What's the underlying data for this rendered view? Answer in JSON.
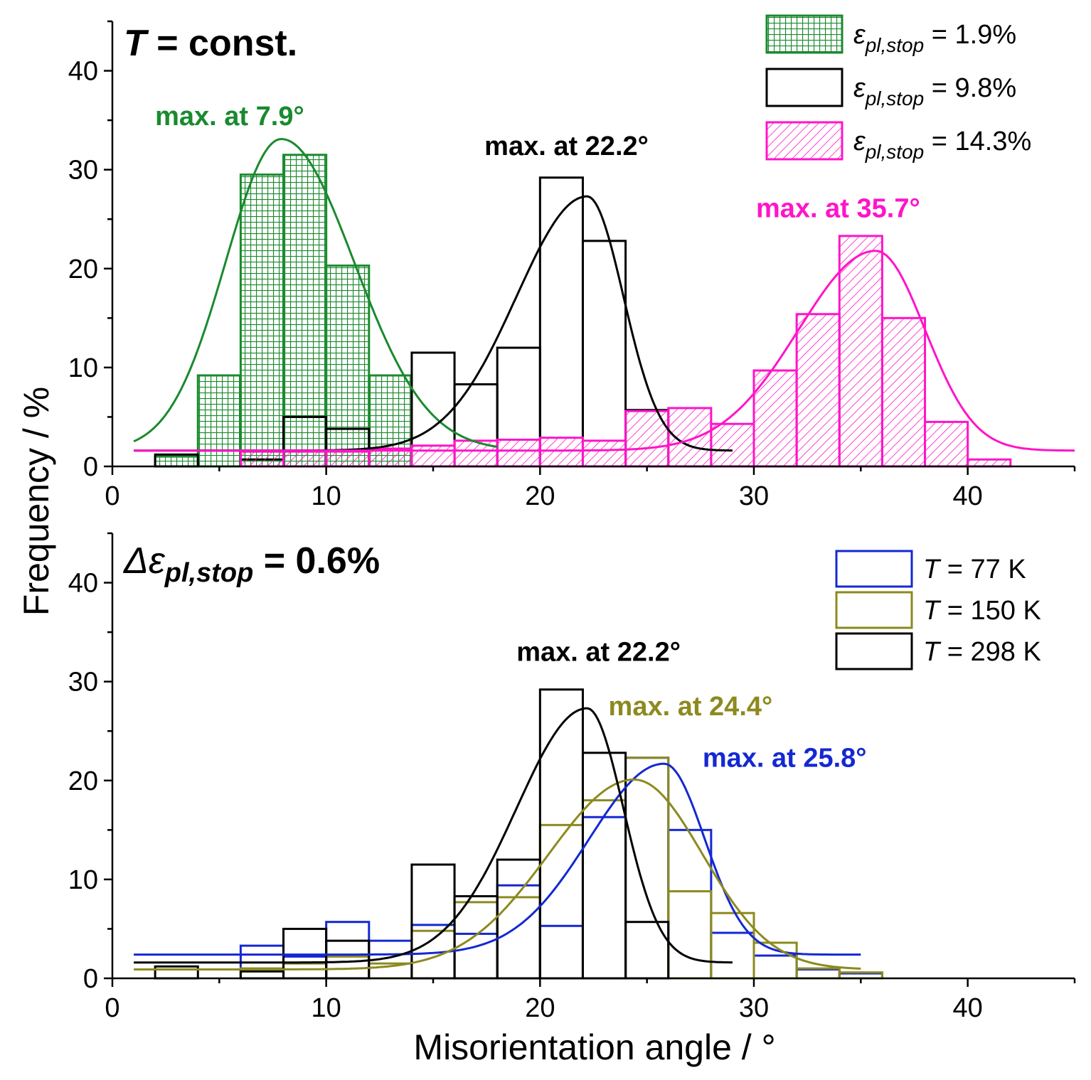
{
  "ylabel": "Frequency / %",
  "xlabel": "Misorientation angle / °",
  "chart_data": [
    {
      "type": "bar",
      "panel": "top",
      "title_parts": [
        "T",
        " = const."
      ],
      "xlim": [
        0,
        45
      ],
      "ylim": [
        0,
        45
      ],
      "xticks": [
        0,
        10,
        20,
        30,
        40
      ],
      "yticks": [
        0,
        10,
        20,
        30,
        40
      ],
      "bin_width": 2,
      "legend_position": "top-right",
      "series": [
        {
          "key": "green",
          "legend": {
            "sym": "ε",
            "sub": "pl,stop",
            "value": " = 1.9%"
          },
          "color": "#1a8a2e",
          "fill": "grid",
          "bins": [
            [
              2,
              1
            ],
            [
              4,
              9.2
            ],
            [
              6,
              29.5
            ],
            [
              8,
              31.5
            ],
            [
              10,
              20.3
            ],
            [
              12,
              9.2
            ]
          ],
          "fit": {
            "peak": 7.9,
            "amp": 31.5,
            "sl": 2.6,
            "sr": 3.4,
            "base": 1.6,
            "xmin": 1,
            "xmax": 18
          },
          "annotation": {
            "prefix": "max. at ",
            "value": "7.9°",
            "x": 2.0,
            "y": 34.5
          }
        },
        {
          "key": "black",
          "legend": {
            "sym": "ε",
            "sub": "pl,stop",
            "value": " = 9.8%"
          },
          "color": "#000000",
          "fill": "none",
          "bins": [
            [
              2,
              1.2
            ],
            [
              6,
              0.7
            ],
            [
              8,
              5
            ],
            [
              10,
              3.8
            ],
            [
              14,
              11.5
            ],
            [
              16,
              8.3
            ],
            [
              18,
              12
            ],
            [
              20,
              29.2
            ],
            [
              22,
              22.8
            ],
            [
              24,
              5.7
            ]
          ],
          "fit": {
            "peak": 22.2,
            "amp": 25.7,
            "sl": 3.3,
            "sr": 1.7,
            "base": 1.6,
            "xmin": 1,
            "xmax": 29
          },
          "annotation": {
            "prefix": "max. at ",
            "value": "22.2°",
            "x": 17.4,
            "y": 31.5
          }
        },
        {
          "key": "magenta",
          "legend": {
            "sym": "ε",
            "sub": "pl,stop",
            "value": " = 14.3%"
          },
          "color": "#ff14c8",
          "fill": "hatch",
          "bins": [
            [
              6,
              1.5
            ],
            [
              8,
              1.5
            ],
            [
              10,
              1.5
            ],
            [
              12,
              1.8
            ],
            [
              14,
              2.1
            ],
            [
              16,
              2.6
            ],
            [
              18,
              2.7
            ],
            [
              20,
              2.9
            ],
            [
              22,
              2.6
            ],
            [
              24,
              5.6
            ],
            [
              26,
              5.9
            ],
            [
              28,
              4.3
            ],
            [
              30,
              9.7
            ],
            [
              32,
              15.4
            ],
            [
              34,
              23.3
            ],
            [
              36,
              15
            ],
            [
              38,
              4.5
            ],
            [
              40,
              0.7
            ]
          ],
          "fit": {
            "peak": 35.7,
            "amp": 20.2,
            "sl": 3.6,
            "sr": 2.3,
            "base": 1.6,
            "xmin": 1,
            "xmax": 45
          },
          "annotation": {
            "prefix": "max. at ",
            "value": "35.7°",
            "x": 30.1,
            "y": 25.2
          }
        }
      ]
    },
    {
      "type": "bar",
      "panel": "bottom",
      "title_parts": [
        "Δε",
        "pl,stop",
        " = 0.6%"
      ],
      "xlim": [
        0,
        45
      ],
      "ylim": [
        0,
        45
      ],
      "xticks": [
        0,
        10,
        20,
        30,
        40
      ],
      "yticks": [
        0,
        10,
        20,
        30,
        40
      ],
      "bin_width": 2,
      "legend_position": "top-right",
      "series": [
        {
          "key": "blue",
          "legend": {
            "sym": "T",
            "value": " = 77 K"
          },
          "color": "#1428d2",
          "fill": "none",
          "bins": [
            [
              6,
              3.3
            ],
            [
              8,
              2.2
            ],
            [
              10,
              5.7
            ],
            [
              12,
              3.8
            ],
            [
              14,
              5.4
            ],
            [
              16,
              4.5
            ],
            [
              18,
              9.4
            ],
            [
              20,
              5.3
            ],
            [
              22,
              16.3
            ],
            [
              24,
              22.3
            ],
            [
              26,
              15
            ],
            [
              28,
              4.6
            ],
            [
              30,
              2.3
            ],
            [
              32,
              0.9
            ],
            [
              34,
              0.5
            ]
          ],
          "fit": {
            "peak": 25.8,
            "amp": 19.3,
            "sl": 3.5,
            "sr": 1.9,
            "base": 2.4,
            "xmin": 1,
            "xmax": 35
          },
          "annotation": {
            "prefix": "max. at ",
            "value": "25.8°",
            "x": 27.6,
            "y": 21.4
          }
        },
        {
          "key": "olive",
          "legend": {
            "sym": "T",
            "value": " = 150 K"
          },
          "color": "#8c8a1e",
          "fill": "none",
          "bins": [
            [
              6,
              1
            ],
            [
              8,
              1.5
            ],
            [
              10,
              2.2
            ],
            [
              12,
              1.5
            ],
            [
              14,
              4.8
            ],
            [
              16,
              7.7
            ],
            [
              18,
              8.2
            ],
            [
              20,
              15.5
            ],
            [
              22,
              18
            ],
            [
              24,
              22.3
            ],
            [
              26,
              8.8
            ],
            [
              28,
              6.6
            ],
            [
              30,
              3.6
            ],
            [
              32,
              1
            ],
            [
              34,
              0.6
            ]
          ],
          "fit": {
            "peak": 24.4,
            "amp": 19.2,
            "sl": 4.0,
            "sr": 3.2,
            "base": 0.9,
            "xmin": 1,
            "xmax": 35
          },
          "annotation": {
            "prefix": "max. at ",
            "value": "24.4°",
            "x": 23.2,
            "y": 26.6
          }
        },
        {
          "key": "black2",
          "legend": {
            "sym": "T",
            "value": " = 298 K"
          },
          "color": "#000000",
          "fill": "none",
          "bins": [
            [
              2,
              1.2
            ],
            [
              6,
              0.7
            ],
            [
              8,
              5
            ],
            [
              10,
              3.8
            ],
            [
              14,
              11.5
            ],
            [
              16,
              8.3
            ],
            [
              18,
              12
            ],
            [
              20,
              29.2
            ],
            [
              22,
              22.8
            ],
            [
              24,
              5.7
            ]
          ],
          "fit": {
            "peak": 22.2,
            "amp": 25.7,
            "sl": 3.3,
            "sr": 1.7,
            "base": 1.6,
            "xmin": 1,
            "xmax": 29
          },
          "annotation": {
            "prefix": "max. at ",
            "value": "22.2°",
            "x": 18.9,
            "y": 32.1
          }
        }
      ]
    }
  ]
}
